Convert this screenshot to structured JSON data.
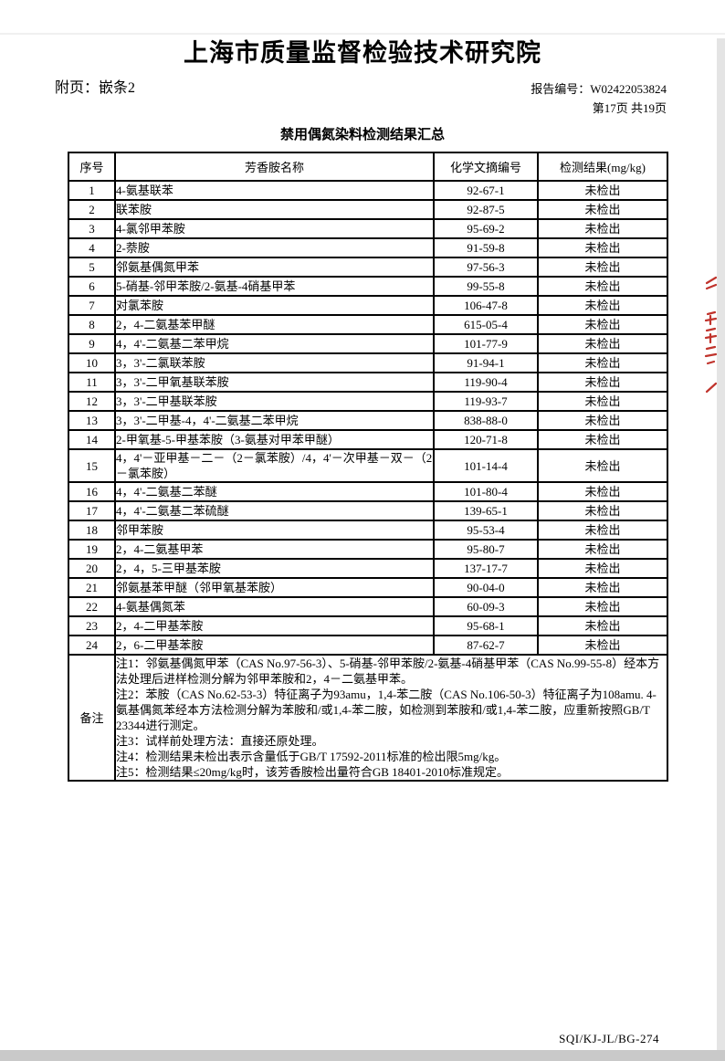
{
  "page": {
    "org_title": "上海市质量监督检验技术研究院",
    "attachment_label": "附页：嵌条2",
    "report_no_label": "报告编号：",
    "report_no_value": "W02422053824",
    "page_info": "第17页 共19页",
    "table_title": "禁用偶氮染料检测结果汇总",
    "footer_code": "SQI/KJ-JL/BG-274"
  },
  "table": {
    "headers": [
      "序号",
      "芳香胺名称",
      "化学文摘编号",
      "检测结果(mg/kg)"
    ],
    "rows": [
      [
        "1",
        "4-氨基联苯",
        "92-67-1",
        "未检出"
      ],
      [
        "2",
        "联苯胺",
        "92-87-5",
        "未检出"
      ],
      [
        "3",
        "4-氯邻甲苯胺",
        "95-69-2",
        "未检出"
      ],
      [
        "4",
        "2-萘胺",
        "91-59-8",
        "未检出"
      ],
      [
        "5",
        "邻氨基偶氮甲苯",
        "97-56-3",
        "未检出"
      ],
      [
        "6",
        "5-硝基-邻甲苯胺/2-氨基-4硝基甲苯",
        "99-55-8",
        "未检出"
      ],
      [
        "7",
        "对氯苯胺",
        "106-47-8",
        "未检出"
      ],
      [
        "8",
        "2，4-二氨基苯甲醚",
        "615-05-4",
        "未检出"
      ],
      [
        "9",
        "4，4'-二氨基二苯甲烷",
        "101-77-9",
        "未检出"
      ],
      [
        "10",
        "3，3'-二氯联苯胺",
        "91-94-1",
        "未检出"
      ],
      [
        "11",
        "3，3'-二甲氧基联苯胺",
        "119-90-4",
        "未检出"
      ],
      [
        "12",
        "3，3'-二甲基联苯胺",
        "119-93-7",
        "未检出"
      ],
      [
        "13",
        "3，3'-二甲基-4，4'-二氨基二苯甲烷",
        "838-88-0",
        "未检出"
      ],
      [
        "14",
        "2-甲氧基-5-甲基苯胺（3-氨基对甲苯甲醚）",
        "120-71-8",
        "未检出"
      ],
      [
        "15",
        "4，4'－亚甲基－二－（2－氯苯胺）/4，4'－次甲基－双－（2－氯苯胺）",
        "101-14-4",
        "未检出"
      ],
      [
        "16",
        "4，4'-二氨基二苯醚",
        "101-80-4",
        "未检出"
      ],
      [
        "17",
        "4，4'-二氨基二苯硫醚",
        "139-65-1",
        "未检出"
      ],
      [
        "18",
        "邻甲苯胺",
        "95-53-4",
        "未检出"
      ],
      [
        "19",
        "2，4-二氨基甲苯",
        "95-80-7",
        "未检出"
      ],
      [
        "20",
        "2，4，5-三甲基苯胺",
        "137-17-7",
        "未检出"
      ],
      [
        "21",
        "邻氨基苯甲醚（邻甲氧基苯胺）",
        "90-04-0",
        "未检出"
      ],
      [
        "22",
        "4-氨基偶氮苯",
        "60-09-3",
        "未检出"
      ],
      [
        "23",
        "2，4-二甲基苯胺",
        "95-68-1",
        "未检出"
      ],
      [
        "24",
        "2，6-二甲基苯胺",
        "87-62-7",
        "未检出"
      ]
    ],
    "remark_label": "备注",
    "remark_lines": [
      "注1：邻氨基偶氮甲苯（CAS No.97-56-3）、5-硝基-邻甲苯胺/2-氨基-4硝基甲苯（CAS No.99-55-8）经本方法处理后进样检测分解为邻甲苯胺和2，4－二氨基甲苯。",
      "注2：苯胺（CAS No.62-53-3）特征离子为93amu，1,4-苯二胺（CAS No.106-50-3）特征离子为108amu. 4-氨基偶氮苯经本方法检测分解为苯胺和/或1,4-苯二胺，如检测到苯胺和/或1,4-苯二胺，应重新按照GB/T 23344进行测定。",
      "注3：试样前处理方法：直接还原处理。",
      "注4：检测结果未检出表示含量低于GB/T 17592-2011标准的检出限5mg/kg。",
      "注5：检测结果≤20mg/kg时，该芳香胺检出量符合GB 18401-2010标准规定。"
    ]
  },
  "seal": {
    "color": "#c0332c"
  }
}
